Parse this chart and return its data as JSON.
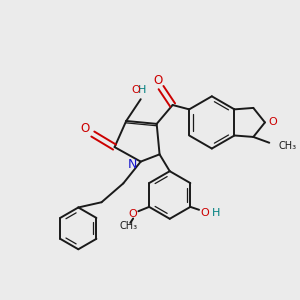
{
  "bg_color": "#ebebeb",
  "line_color": "#1a1a1a",
  "nitrogen_color": "#1414cc",
  "oxygen_color": "#cc0000",
  "OH_color": "#008080",
  "figsize": [
    3.0,
    3.0
  ],
  "dpi": 100,
  "xlim": [
    0,
    10
  ],
  "ylim": [
    0,
    10
  ]
}
